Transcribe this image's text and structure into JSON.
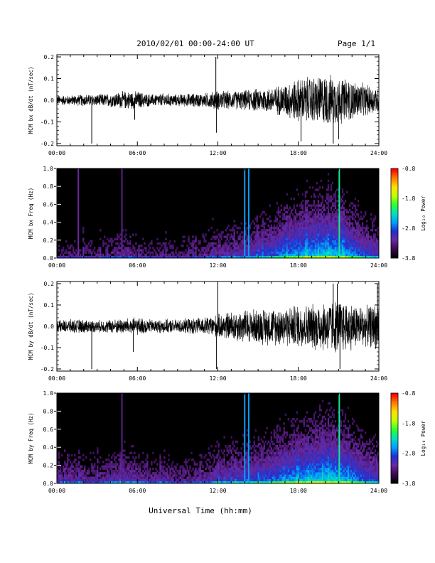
{
  "header": {
    "date_range": "2010/02/01  00:00-24:00 UT",
    "page": "Page 1/1"
  },
  "footer": {
    "xlabel": "Universal Time (hh:mm)"
  },
  "colorbar": {
    "label": "Log₁₀ Power",
    "ticks": [
      "-0.8",
      "-1.8",
      "-2.8",
      "-3.8"
    ],
    "range": [
      -3.8,
      -0.8
    ],
    "colormap": [
      "#000000",
      "#3a0a55",
      "#6a2aa0",
      "#2030d0",
      "#00a0ff",
      "#00e0c0",
      "#30ff30",
      "#c0ff00",
      "#ffe000",
      "#ff8000",
      "#ff0000"
    ]
  },
  "chart_data": [
    {
      "type": "line",
      "ylabel": "MCM bx dB/dt (nT/sec)",
      "xlim": [
        0,
        24
      ],
      "ylim": [
        -0.21,
        0.21
      ],
      "x_ticks": [
        "00:00",
        "06:00",
        "12:00",
        "18:00",
        "24:00"
      ],
      "y_ticks": [
        "0.2",
        "0.1",
        "0.0",
        "-0.1",
        "-0.2"
      ],
      "grid": false,
      "envelope": {
        "hours": [
          0,
          1,
          2,
          3,
          4,
          5,
          6,
          7,
          8,
          9,
          10,
          11,
          12,
          13,
          14,
          15,
          16,
          17,
          18,
          19,
          20,
          21,
          22,
          23,
          24
        ],
        "amplitude": [
          0.025,
          0.025,
          0.03,
          0.03,
          0.035,
          0.045,
          0.045,
          0.03,
          0.035,
          0.03,
          0.035,
          0.035,
          0.05,
          0.045,
          0.05,
          0.06,
          0.065,
          0.085,
          0.11,
          0.12,
          0.13,
          0.12,
          0.1,
          0.08,
          0.065
        ]
      },
      "spikes": [
        {
          "hour": 2.6,
          "value": -0.2
        },
        {
          "hour": 5.8,
          "value": -0.09
        },
        {
          "hour": 11.85,
          "value": 0.2
        },
        {
          "hour": 11.9,
          "value": -0.15
        },
        {
          "hour": 18.2,
          "value": -0.19
        },
        {
          "hour": 20.6,
          "value": -0.2
        },
        {
          "hour": 21.0,
          "value": -0.18
        }
      ]
    },
    {
      "type": "heatmap",
      "ylabel": "MCM bx Freq (Hz)",
      "xlim": [
        0,
        24
      ],
      "ylim": [
        0,
        1.0
      ],
      "x_ticks": [
        "00:00",
        "06:00",
        "12:00",
        "18:00",
        "24:00"
      ],
      "y_ticks": [
        "1.0",
        "0.8",
        "0.6",
        "0.4",
        "0.2",
        "0.0"
      ],
      "activity": [
        0.18,
        0.2,
        0.22,
        0.2,
        0.25,
        0.3,
        0.28,
        0.22,
        0.22,
        0.2,
        0.22,
        0.28,
        0.32,
        0.35,
        0.38,
        0.45,
        0.5,
        0.6,
        0.65,
        0.68,
        0.72,
        0.7,
        0.6,
        0.48,
        0.4
      ],
      "vertical_bands": [
        {
          "hour": 1.6,
          "level": -3.2
        },
        {
          "hour": 4.85,
          "level": -3.3
        },
        {
          "hour": 14.0,
          "level": -2.6
        },
        {
          "hour": 14.3,
          "level": -2.6
        },
        {
          "hour": 21.05,
          "level": -2.2
        }
      ]
    },
    {
      "type": "line",
      "ylabel": "MCM by dB/dt (nT/sec)",
      "xlim": [
        0,
        24
      ],
      "ylim": [
        -0.21,
        0.21
      ],
      "x_ticks": [
        "00:00",
        "06:00",
        "12:00",
        "18:00",
        "24:00"
      ],
      "y_ticks": [
        "0.2",
        "0.1",
        "0.0",
        "-0.1",
        "-0.2"
      ],
      "grid": false,
      "envelope": {
        "hours": [
          0,
          1,
          2,
          3,
          4,
          5,
          6,
          7,
          8,
          9,
          10,
          11,
          12,
          13,
          14,
          15,
          16,
          17,
          18,
          19,
          20,
          21,
          22,
          23,
          24
        ],
        "amplitude": [
          0.03,
          0.035,
          0.035,
          0.03,
          0.035,
          0.04,
          0.045,
          0.035,
          0.035,
          0.035,
          0.04,
          0.045,
          0.06,
          0.075,
          0.085,
          0.09,
          0.095,
          0.1,
          0.11,
          0.115,
          0.13,
          0.14,
          0.12,
          0.1,
          0.12
        ]
      },
      "spikes": [
        {
          "hour": 2.6,
          "value": -0.2
        },
        {
          "hour": 5.7,
          "value": -0.12
        },
        {
          "hour": 11.9,
          "value": -0.2
        },
        {
          "hour": 12.0,
          "value": 0.2
        },
        {
          "hour": 20.6,
          "value": 0.2
        },
        {
          "hour": 20.9,
          "value": 0.2
        },
        {
          "hour": 21.1,
          "value": -0.2
        },
        {
          "hour": 23.9,
          "value": 0.2
        }
      ]
    },
    {
      "type": "heatmap",
      "ylabel": "MCM by Freq (Hz)",
      "xlim": [
        0,
        24
      ],
      "ylim": [
        0,
        1.0
      ],
      "x_ticks": [
        "00:00",
        "06:00",
        "12:00",
        "18:00",
        "24:00"
      ],
      "y_ticks": [
        "1.0",
        "0.8",
        "0.6",
        "0.4",
        "0.2",
        "0.0"
      ],
      "activity": [
        0.3,
        0.32,
        0.3,
        0.28,
        0.32,
        0.38,
        0.35,
        0.28,
        0.28,
        0.26,
        0.28,
        0.32,
        0.38,
        0.42,
        0.45,
        0.5,
        0.55,
        0.62,
        0.66,
        0.7,
        0.74,
        0.72,
        0.64,
        0.52,
        0.45
      ],
      "vertical_bands": [
        {
          "hour": 4.85,
          "level": -3.3
        },
        {
          "hour": 14.0,
          "level": -2.6
        },
        {
          "hour": 14.3,
          "level": -2.6
        },
        {
          "hour": 21.05,
          "level": -2.2
        }
      ]
    }
  ]
}
